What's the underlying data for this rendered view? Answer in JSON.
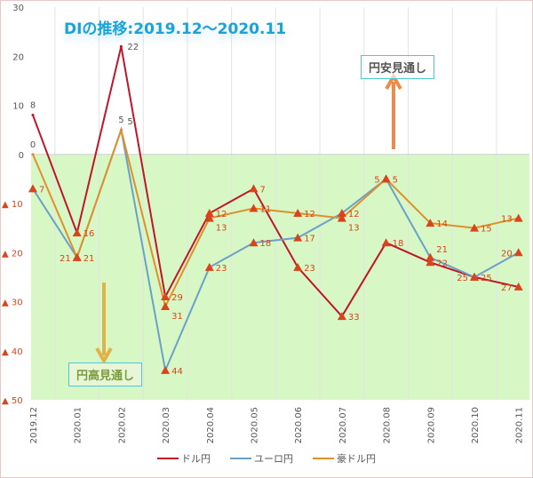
{
  "chart_data": {
    "type": "line",
    "title": "DIの推移:2019.12～2020.11",
    "categories": [
      "2019.12",
      "2020.01",
      "2020.02",
      "2020.03",
      "2020.04",
      "2020.05",
      "2020.06",
      "2020.07",
      "2020.08",
      "2020.09",
      "2020.10",
      "2020.11"
    ],
    "series": [
      {
        "name": "ドル円",
        "color": "#c0152b",
        "values": [
          8,
          -16,
          22,
          -29,
          -12,
          -7,
          -23,
          -33,
          -18,
          -22,
          -25,
          -27
        ]
      },
      {
        "name": "ユーロ円",
        "color": "#6aa1c9",
        "values": [
          -7,
          -21,
          5,
          -44,
          -23,
          -18,
          -17,
          -12,
          -5,
          -21,
          -25,
          -20
        ]
      },
      {
        "name": "豪ドル円",
        "color": "#e0902a",
        "values": [
          0,
          -21,
          5,
          -31,
          -13,
          -11,
          -12,
          -13,
          -5,
          -14,
          -15,
          -13
        ]
      }
    ],
    "ylim": [
      -50,
      30
    ],
    "yticks": [
      30,
      20,
      10,
      0,
      -10,
      -20,
      -30,
      -40,
      -50
    ],
    "ytick_labels": [
      "30",
      "20",
      "10",
      "0",
      "▲ 10",
      "▲ 20",
      "▲ 30",
      "▲ 40",
      "▲ 50"
    ],
    "legend": "bottom",
    "annotations": {
      "yen_weak": "円安見通し",
      "yen_strong": "円高見通し"
    }
  }
}
